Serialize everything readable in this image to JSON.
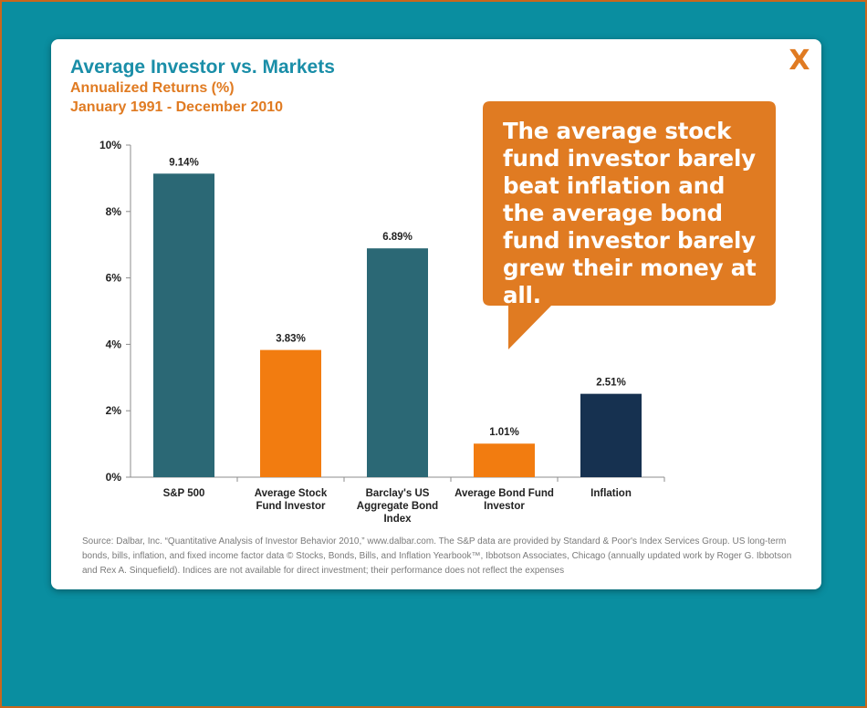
{
  "close_label": "X",
  "chart_data": {
    "type": "bar",
    "title": "Average Investor vs. Markets",
    "subtitle": [
      "Annualized Returns (%)",
      "January 1991 - December 2010"
    ],
    "categories": [
      [
        "S&P 500"
      ],
      [
        "Average Stock",
        "Fund Investor"
      ],
      [
        "Barclay's US",
        "Aggregate Bond",
        "Index"
      ],
      [
        "Average Bond Fund",
        "Investor"
      ],
      [
        "Inflation"
      ]
    ],
    "values": [
      9.14,
      3.83,
      6.89,
      1.01,
      2.51
    ],
    "data_labels": [
      "9.14%",
      "3.83%",
      "6.89%",
      "1.01%",
      "2.51%"
    ],
    "colors": [
      "#2b6875",
      "#f27c10",
      "#2b6875",
      "#f27c10",
      "#163150"
    ],
    "ylim": [
      0,
      10
    ],
    "yticks": [
      0,
      2,
      4,
      6,
      8,
      10
    ],
    "ytick_labels": [
      "0%",
      "2%",
      "4%",
      "6%",
      "8%",
      "10%"
    ],
    "xlabel": "",
    "ylabel": "",
    "grid": false,
    "legend": "none"
  },
  "callout": {
    "text": "The average stock fund investor barely beat inflation and the average bond fund investor barely grew their money at all.",
    "color": "#e07b22"
  },
  "source": "Source: Dalbar, Inc. “Quantitative Analysis of Investor Behavior 2010,” www.dalbar.com. The S&P data are provided by Standard & Poor's Index Services Group. US long-term bonds, bills, inflation, and fixed income factor data © Stocks, Bonds, Bills, and Inflation Yearbook™, Ibbotson Associates, Chicago (annually updated work by Roger G. Ibbotson and Rex A. Sinquefield). Indices are not available for direct investment; their performance does not reflect the expenses"
}
